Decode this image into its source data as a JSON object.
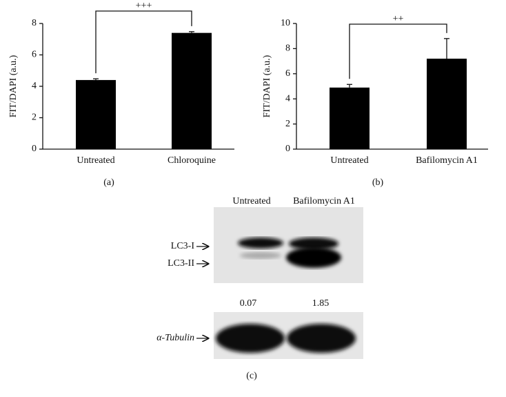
{
  "chart_data": [
    {
      "type": "bar",
      "panel": "(a)",
      "y_label": "FIT/DAPI (a.u.)",
      "annotation": "+++",
      "categories": [
        "Untreated",
        "Chloroquine"
      ],
      "values": [
        4.4,
        7.4
      ],
      "errors": [
        0.08,
        0.08
      ],
      "color": "#000000",
      "ylim": [
        0,
        8
      ],
      "yticks": [
        0,
        2,
        4,
        6,
        8
      ]
    },
    {
      "type": "bar",
      "panel": "(b)",
      "y_label": "FIT/DAPI (a.u.)",
      "annotation": "++",
      "categories": [
        "Untreated",
        "Bafilomycin A1"
      ],
      "values": [
        4.9,
        7.2
      ],
      "errors": [
        0.25,
        1.6
      ],
      "color": "#000000",
      "ylim": [
        0,
        10
      ],
      "yticks": [
        0,
        2,
        4,
        6,
        8,
        10
      ]
    }
  ],
  "blot": {
    "panel": "(c)",
    "lanes": [
      "Untreated",
      "Bafilomycin A1"
    ],
    "bands": [
      "LC3-I",
      "LC3-II"
    ],
    "ratios": [
      0.07,
      1.85
    ],
    "loading_control": "α-Tubulin"
  }
}
